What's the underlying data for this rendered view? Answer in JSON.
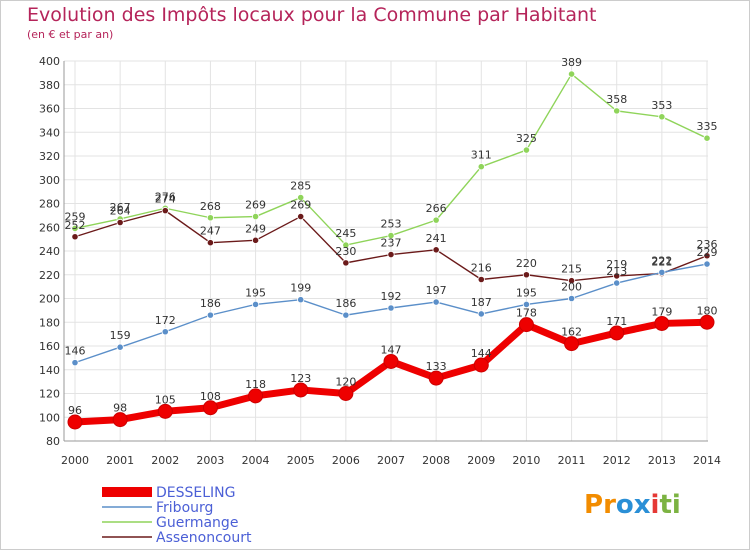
{
  "chart_data": {
    "type": "line",
    "title": "Evolution des Impôts locaux pour la Commune par Habitant",
    "subtitle": "(en € et par an)",
    "x": [
      "2000",
      "2001",
      "2002",
      "2003",
      "2004",
      "2005",
      "2006",
      "2007",
      "2008",
      "2009",
      "2010",
      "2011",
      "2012",
      "2013",
      "2014"
    ],
    "ylim": [
      80,
      400
    ],
    "yticks": [
      80,
      100,
      120,
      140,
      160,
      180,
      200,
      220,
      240,
      260,
      280,
      300,
      320,
      340,
      360,
      380,
      400
    ],
    "grid": true,
    "legend_position": "bottom-left",
    "series": [
      {
        "name": "DESSELING",
        "color": "#ee0000",
        "values": [
          96,
          98,
          105,
          108,
          118,
          123,
          120,
          147,
          133,
          144,
          178,
          162,
          171,
          179,
          180
        ],
        "labels": [
          "96",
          "98",
          "105",
          "108",
          "118",
          "123",
          "120",
          "147",
          "133",
          "144",
          "178",
          "162",
          "171",
          "179",
          "180"
        ]
      },
      {
        "name": "Fribourg",
        "color": "#5b8fc9",
        "values": [
          146,
          159,
          172,
          186,
          195,
          199,
          186,
          192,
          197,
          187,
          195,
          200,
          213,
          222,
          229
        ],
        "labels": [
          "146",
          "159",
          "172",
          "186",
          "195",
          "199",
          "186",
          "192",
          "197",
          "187",
          "195",
          "200",
          "213",
          "222",
          "229"
        ]
      },
      {
        "name": "Guermange",
        "color": "#8fd45a",
        "values": [
          259,
          267,
          276,
          268,
          269,
          285,
          245,
          253,
          266,
          311,
          325,
          389,
          358,
          353,
          335
        ],
        "labels": [
          "259",
          "267",
          "276",
          "268",
          "269",
          "285",
          "245",
          "253",
          "266",
          "311",
          "325",
          "389",
          "358",
          "353",
          "335"
        ]
      },
      {
        "name": "Assenoncourt",
        "color": "#6b1a1a",
        "values": [
          252,
          264,
          274,
          247,
          249,
          269,
          230,
          237,
          241,
          216,
          220,
          215,
          219,
          221,
          236
        ],
        "labels": [
          "252",
          "264",
          "274",
          "247",
          "249",
          "269",
          "230",
          "237",
          "241",
          "216",
          "220",
          "215",
          "219",
          "221",
          "236"
        ]
      }
    ]
  },
  "logo": {
    "text": "Proxiti",
    "letters": [
      "P",
      "r",
      "o",
      "x",
      "i",
      "t",
      "i"
    ],
    "colors": [
      "#f28c00",
      "#f28c00",
      "#2a8fd6",
      "#2a8fd6",
      "#e53935",
      "#7cb342",
      "#7cb342"
    ]
  }
}
